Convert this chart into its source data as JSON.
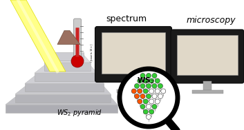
{
  "bg_color": "#ffffff",
  "title_spectrum": "spectrum",
  "title_microscopy": "microscopy",
  "beam_color": "#FFFF88",
  "beam_edge_color": "#DDDD00",
  "spectrum_line_color": "#CC6600",
  "monitor_body_color": "#1A1A1A",
  "monitor_stand_color": "#999999",
  "screen1_bg": "#E8E4DC",
  "screen2_bg": "#0000BB",
  "therm_body": "#BBBBBB",
  "therm_red": "#CC2222",
  "therm_bulb": "#CC0000"
}
